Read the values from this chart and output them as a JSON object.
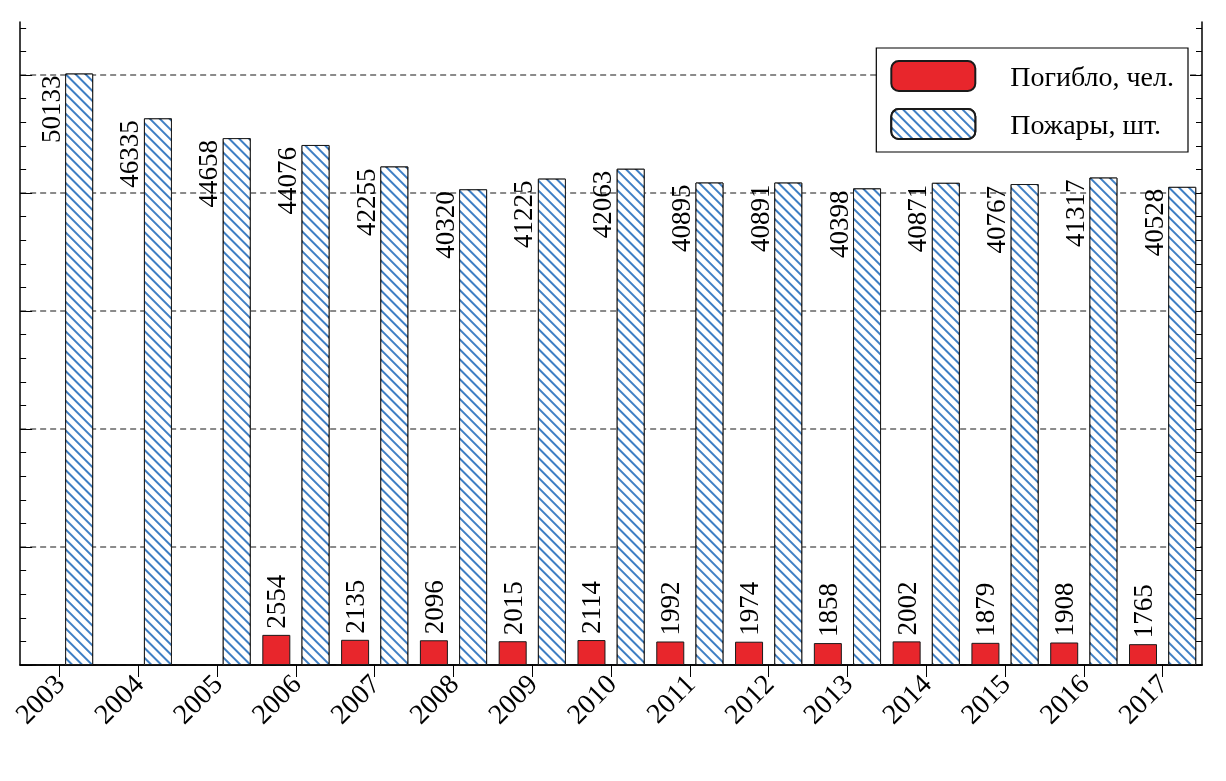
{
  "chart_data": {
    "type": "bar",
    "categories": [
      "2003",
      "2004",
      "2005",
      "2006",
      "2007",
      "2008",
      "2009",
      "2010",
      "2011",
      "2012",
      "2013",
      "2014",
      "2015",
      "2016",
      "2017"
    ],
    "series": [
      {
        "name": "Погибло, чел.",
        "color": "#e8262c",
        "values": [
          null,
          null,
          null,
          2554,
          2135,
          2096,
          2015,
          2114,
          1992,
          1974,
          1858,
          2002,
          1879,
          1908,
          1765
        ]
      },
      {
        "name": "Пожары, шт.",
        "color": "#3f7fc4",
        "values": [
          50133,
          46335,
          44658,
          44076,
          42255,
          40320,
          41225,
          42063,
          40895,
          40891,
          40398,
          40871,
          40767,
          41317,
          40528
        ]
      }
    ],
    "ylim": [
      0,
      54500
    ],
    "yticks": [
      {
        "value": 0,
        "label": null
      },
      {
        "value": 10000,
        "label": null
      },
      {
        "value": 20000,
        "label": null
      },
      {
        "value": 30000,
        "label": null
      },
      {
        "value": 40000,
        "label": null
      },
      {
        "value": 50000,
        "label": null
      }
    ],
    "tick_labels": "x",
    "grid": "y",
    "legend": "top right",
    "data_labels": true
  }
}
